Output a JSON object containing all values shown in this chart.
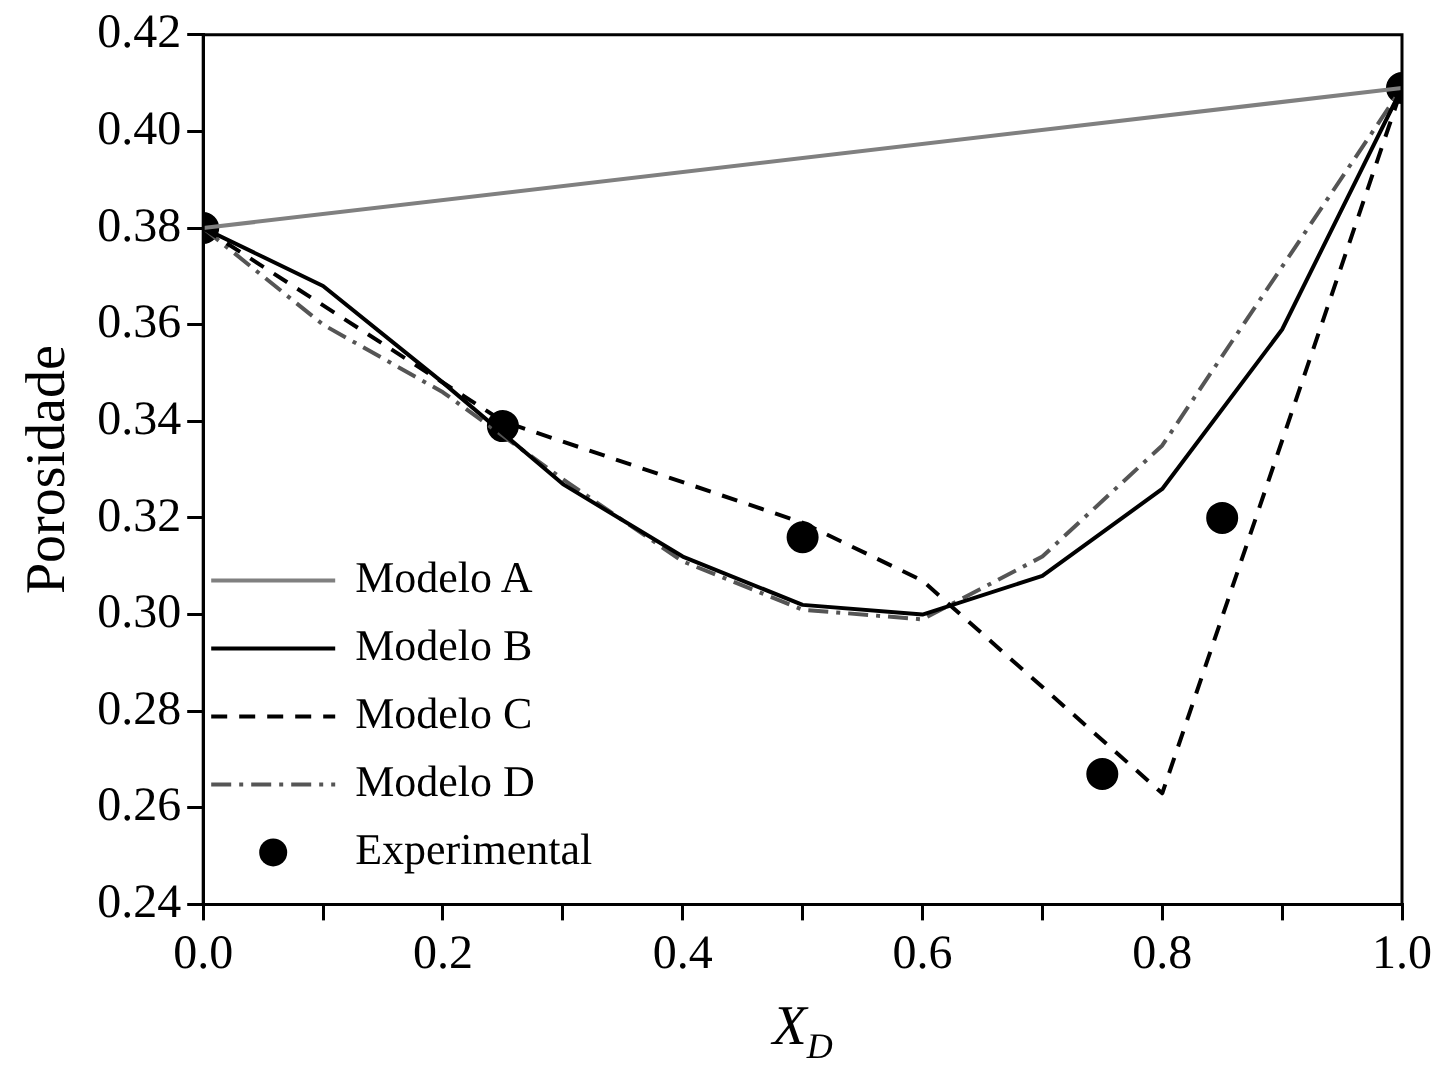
{
  "chart_data": {
    "type": "line",
    "xlabel": "X$_{D}$",
    "ylabel": "Porosidade",
    "xlim": [
      0,
      1
    ],
    "xticks": [
      {
        "value": 0,
        "label": "0.0"
      },
      {
        "value": 0.1,
        "label": null
      },
      0.2,
      {
        "value": 0.3,
        "label": null
      },
      0.4,
      {
        "value": 0.5,
        "label": null
      },
      0.6,
      {
        "value": 0.7,
        "label": null
      },
      0.8,
      {
        "value": 0.9,
        "label": null
      },
      {
        "value": 1,
        "label": "1.0"
      }
    ],
    "ylim": [
      0.24,
      0.42
    ],
    "yticks": [
      0.24,
      0.26,
      0.28,
      {
        "value": 0.3,
        "label": "0.30"
      },
      0.32,
      0.34,
      0.36,
      0.38,
      {
        "value": 0.4,
        "label": "0.40"
      },
      0.42
    ],
    "grid": false,
    "legend": "bottom left",
    "series": [
      {
        "name": "Modelo A",
        "color": "#808080",
        "line_style": "solid",
        "marker": "none",
        "x": [
          0,
          1
        ],
        "values": [
          0.38,
          0.409
        ]
      },
      {
        "name": "Modelo B",
        "color": "#000000",
        "line_style": "solid",
        "marker": "none",
        "x": [
          0,
          0.1,
          0.2,
          0.3,
          0.4,
          0.5,
          0.6,
          0.7,
          0.8,
          0.9,
          1
        ],
        "values": [
          0.38,
          0.368,
          0.348,
          0.327,
          0.312,
          0.302,
          0.3,
          0.308,
          0.326,
          0.359,
          0.409
        ]
      },
      {
        "name": "Modelo C",
        "color": "#000000",
        "line_style": "dashed",
        "marker": "none",
        "x": [
          0,
          0.25,
          0.5,
          0.6,
          0.8,
          1
        ],
        "values": [
          0.38,
          0.34,
          0.319,
          0.307,
          0.263,
          0.409
        ]
      },
      {
        "name": "Modelo D",
        "color": "#555555",
        "line_style": "dashdot",
        "marker": "none",
        "x": [
          0,
          0.1,
          0.2,
          0.3,
          0.4,
          0.5,
          0.6,
          0.7,
          0.8,
          0.9,
          1
        ],
        "values": [
          0.38,
          0.36,
          0.346,
          0.328,
          0.311,
          0.301,
          0.299,
          0.312,
          0.335,
          0.372,
          0.409
        ]
      },
      {
        "name": "Experimental",
        "type": "scatter",
        "color": "#000000",
        "marker": "circle",
        "x": [
          0,
          0.25,
          0.5,
          0.75,
          0.85,
          1
        ],
        "values": [
          0.38,
          0.339,
          0.316,
          0.267,
          0.32,
          0.409
        ]
      }
    ]
  }
}
